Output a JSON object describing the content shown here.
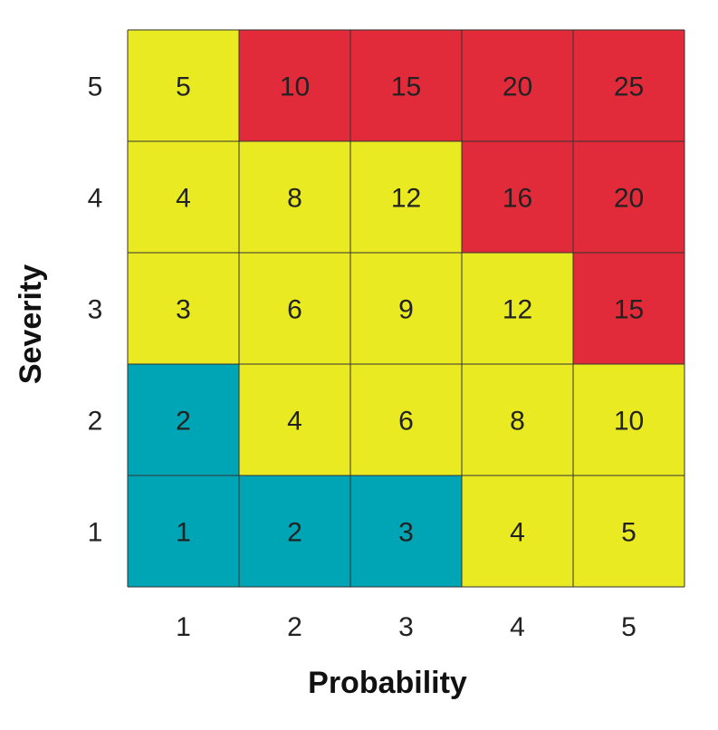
{
  "chart_data": {
    "type": "heatmap",
    "title": "",
    "xlabel": "Probability",
    "ylabel": "Severity",
    "x_categories": [
      "1",
      "2",
      "3",
      "4",
      "5"
    ],
    "y_categories": [
      "1",
      "2",
      "3",
      "4",
      "5"
    ],
    "values": [
      [
        1,
        2,
        3,
        4,
        5
      ],
      [
        2,
        4,
        6,
        8,
        10
      ],
      [
        3,
        6,
        9,
        12,
        15
      ],
      [
        4,
        8,
        12,
        16,
        20
      ],
      [
        5,
        10,
        15,
        20,
        25
      ]
    ],
    "cell_colors": [
      [
        "#00a5b5",
        "#00a5b5",
        "#00a5b5",
        "#eaea22",
        "#eaea22"
      ],
      [
        "#00a5b5",
        "#eaea22",
        "#eaea22",
        "#eaea22",
        "#eaea22"
      ],
      [
        "#eaea22",
        "#eaea22",
        "#eaea22",
        "#eaea22",
        "#e22b3a"
      ],
      [
        "#eaea22",
        "#eaea22",
        "#eaea22",
        "#e22b3a",
        "#e22b3a"
      ],
      [
        "#eaea22",
        "#e22b3a",
        "#e22b3a",
        "#e22b3a",
        "#e22b3a"
      ]
    ],
    "colors": {
      "low": "#00a5b5",
      "medium": "#eaea22",
      "high": "#e22b3a",
      "grid": "#333333"
    },
    "grid": true,
    "legend": "none"
  }
}
